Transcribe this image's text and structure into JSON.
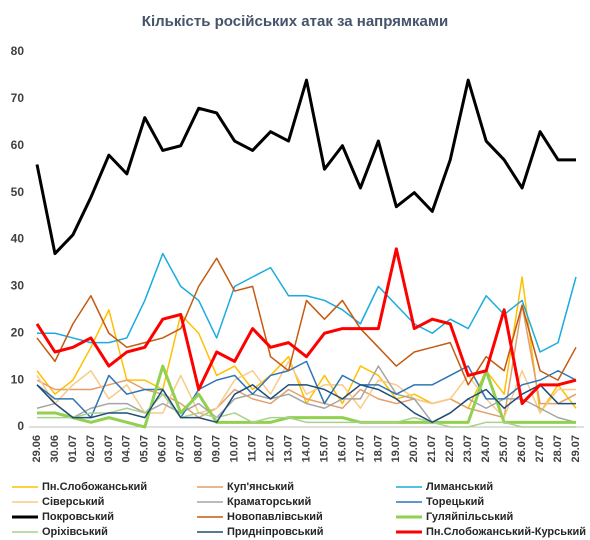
{
  "chart_data": {
    "type": "line",
    "title": "Кількість російських атак за напрямками",
    "categories": [
      "29.06",
      "30.06",
      "01.07",
      "02.07",
      "03.07",
      "04.07",
      "05.07",
      "06.07",
      "07.07",
      "08.07",
      "09.07",
      "10.07",
      "11.07",
      "12.07",
      "13.07",
      "14.07",
      "15.07",
      "16.07",
      "17.07",
      "18.07",
      "19.07",
      "20.07",
      "21.07",
      "22.07",
      "23.07",
      "24.07",
      "25.07",
      "26.07",
      "27.07",
      "28.07",
      "29.07"
    ],
    "ylim": [
      0,
      80
    ],
    "yticks": [
      0,
      10,
      20,
      30,
      40,
      50,
      60,
      70,
      80
    ],
    "grid": false,
    "series": [
      {
        "name": "Пн.Слобожанський",
        "color": "#ffc000",
        "width": 1.5,
        "values": [
          12,
          7,
          10,
          17,
          25,
          10,
          10,
          8,
          24,
          20,
          11,
          13,
          8,
          11,
          15,
          5,
          11,
          5,
          13,
          11,
          6,
          7,
          5,
          6,
          4,
          12,
          7,
          32,
          3,
          9,
          4
        ]
      },
      {
        "name": "Куп'янський",
        "color": "#e39e6c",
        "width": 1.5,
        "values": [
          10,
          8,
          8,
          8,
          9,
          10,
          8,
          7,
          5,
          2,
          4,
          8,
          6,
          5,
          8,
          6,
          5,
          4,
          8,
          6,
          5,
          6,
          5,
          6,
          4,
          3,
          2,
          26,
          5,
          5,
          7
        ]
      },
      {
        "name": "Лиманський",
        "color": "#1aabe0",
        "width": 1.5,
        "values": [
          20,
          20,
          19,
          18,
          18,
          19,
          27,
          37,
          30,
          27,
          19,
          30,
          32,
          34,
          28,
          28,
          27,
          25,
          22,
          30,
          26,
          22,
          20,
          23,
          21,
          28,
          24,
          27,
          16,
          18,
          32
        ]
      },
      {
        "name": "Сіверський",
        "color": "#f8cb88",
        "width": 1.5,
        "values": [
          11,
          5,
          9,
          12,
          6,
          9,
          3,
          3,
          11,
          3,
          4,
          10,
          12,
          7,
          14,
          7,
          9,
          9,
          4,
          10,
          9,
          6,
          5,
          6,
          11,
          6,
          2,
          12,
          3,
          8,
          8
        ]
      },
      {
        "name": "Краматорський",
        "color": "#a5a5a5",
        "width": 1.5,
        "values": [
          4,
          5,
          2,
          4,
          5,
          5,
          3,
          5,
          3,
          5,
          2,
          6,
          7,
          6,
          7,
          5,
          4,
          6,
          6,
          13,
          7,
          6,
          1,
          3,
          6,
          4,
          6,
          6,
          4,
          2,
          1
        ]
      },
      {
        "name": "Торецький",
        "color": "#2e75b6",
        "width": 1.5,
        "values": [
          9,
          6,
          6,
          2,
          11,
          7,
          8,
          8,
          2,
          8,
          10,
          11,
          7,
          11,
          12,
          14,
          5,
          11,
          9,
          9,
          7,
          9,
          9,
          11,
          13,
          6,
          6,
          9,
          10,
          12,
          10
        ]
      },
      {
        "name": "Покровський",
        "color": "#000000",
        "width": 3,
        "values": [
          56,
          37,
          41,
          49,
          58,
          54,
          66,
          59,
          60,
          68,
          67,
          61,
          59,
          63,
          61,
          74,
          55,
          60,
          51,
          61,
          47,
          50,
          46,
          57,
          74,
          61,
          57,
          51,
          63,
          57,
          57
        ]
      },
      {
        "name": "Новопавлівський",
        "color": "#c55a11",
        "width": 1.5,
        "values": [
          19,
          14,
          22,
          28,
          20,
          17,
          18,
          19,
          21,
          30,
          36,
          29,
          30,
          15,
          12,
          27,
          23,
          27,
          21,
          17,
          13,
          16,
          17,
          18,
          9,
          15,
          12,
          26,
          12,
          10,
          17
        ]
      },
      {
        "name": "Гуляйпільський",
        "color": "#92d050",
        "width": 3,
        "values": [
          3,
          3,
          2,
          1,
          2,
          1,
          0,
          13,
          3,
          7,
          1,
          1,
          1,
          1,
          2,
          2,
          2,
          2,
          1,
          1,
          1,
          1,
          1,
          1,
          1,
          12,
          1,
          1,
          1,
          1,
          1
        ]
      },
      {
        "name": "Оріхівський",
        "color": "#a9d18e",
        "width": 1.5,
        "values": [
          2,
          2,
          2,
          3,
          3,
          4,
          3,
          7,
          2,
          3,
          2,
          3,
          1,
          2,
          2,
          1,
          1,
          1,
          1,
          1,
          1,
          2,
          1,
          0,
          0,
          1,
          1,
          0,
          0,
          0,
          0
        ]
      },
      {
        "name": "Придніпровський",
        "color": "#1f4e79",
        "width": 1.5,
        "values": [
          9,
          5,
          2,
          2,
          3,
          3,
          2,
          8,
          2,
          2,
          1,
          7,
          9,
          6,
          9,
          9,
          8,
          6,
          9,
          8,
          6,
          3,
          1,
          3,
          6,
          8,
          4,
          7,
          9,
          5,
          5
        ]
      },
      {
        "name": "Пн.Слобожанський-Курський",
        "color": "#ff0000",
        "width": 3,
        "values": [
          22,
          16,
          17,
          19,
          13,
          16,
          17,
          23,
          24,
          8,
          16,
          14,
          21,
          17,
          18,
          15,
          20,
          21,
          21,
          21,
          38,
          21,
          23,
          22,
          11,
          12,
          25,
          5,
          9,
          9,
          10
        ]
      }
    ]
  }
}
